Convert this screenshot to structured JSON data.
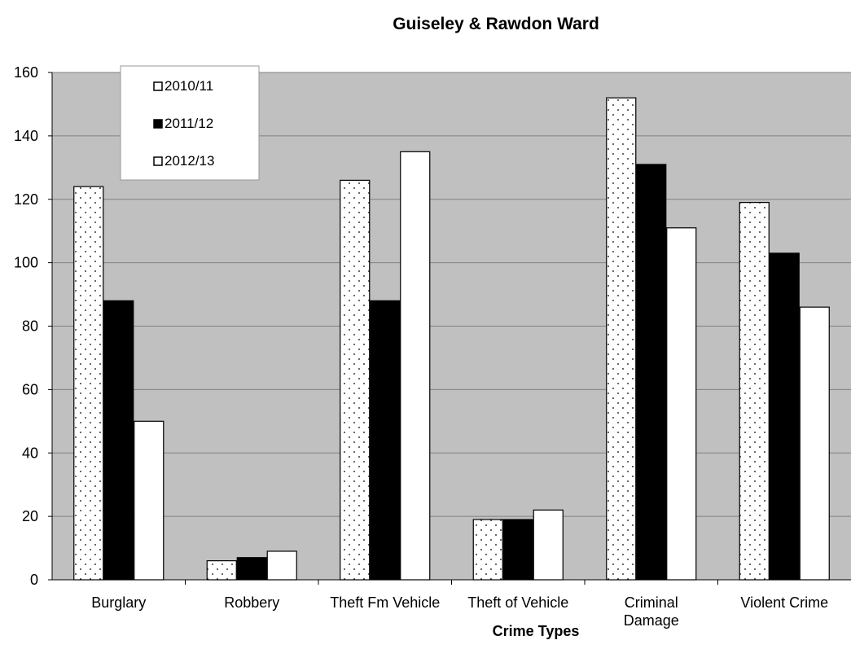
{
  "chart_data": {
    "type": "bar",
    "title": "Guiseley & Rawdon Ward",
    "xlabel": "Crime Types",
    "ylabel": "",
    "ylim": [
      0,
      160
    ],
    "yticks": [
      0,
      20,
      40,
      60,
      80,
      100,
      120,
      140,
      160
    ],
    "grid": true,
    "legend_position": "top-left",
    "categories": [
      [
        "Burglary"
      ],
      [
        "Robbery"
      ],
      [
        "Theft Fm Vehicle"
      ],
      [
        "Theft of Vehicle"
      ],
      [
        "Criminal",
        "Damage"
      ],
      [
        "Violent Crime"
      ]
    ],
    "series": [
      {
        "name": "2010/11",
        "pattern": "dotted",
        "values": [
          124,
          6,
          126,
          19,
          152,
          119
        ]
      },
      {
        "name": "2011/12",
        "pattern": "solid-black",
        "values": [
          88,
          7,
          88,
          19,
          131,
          103
        ]
      },
      {
        "name": "2012/13",
        "pattern": "white",
        "values": [
          50,
          9,
          135,
          22,
          111,
          86
        ]
      }
    ],
    "colors": {
      "plot_background": "#c0c0c0",
      "grid": "#808080",
      "bar_dark": "#000000",
      "bar_light": "#ffffff"
    }
  }
}
